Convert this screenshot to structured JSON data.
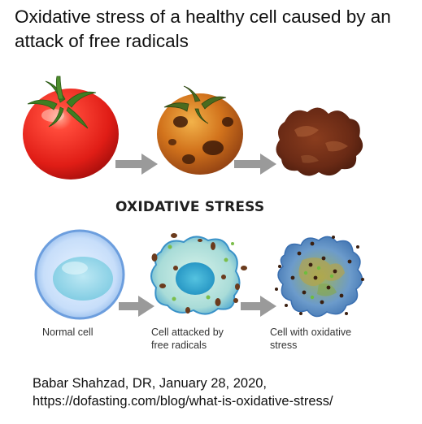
{
  "title": "Oxidative stress of a healthy cell caused by an attack of free radicals",
  "section_heading": "OXIDATIVE STRESS",
  "tomato_stages": [
    {
      "name": "fresh-tomato"
    },
    {
      "name": "spotted-tomato"
    },
    {
      "name": "rotten-tomato"
    }
  ],
  "cell_stages": [
    {
      "label_lines": [
        "Normal cell"
      ]
    },
    {
      "label_lines": [
        "Cell attacked by",
        "free radicals"
      ]
    },
    {
      "label_lines": [
        "Cell with oxidative",
        "stress"
      ]
    }
  ],
  "credit": {
    "line1": "Babar Shahzad, DR, January 28, 2020,",
    "line2": "https://dofasting.com/blog/what-is-oxidative-stress/"
  },
  "colors": {
    "arrow": "#9a9a9a",
    "tomato_red": "#e8231c",
    "cell_blue": "#a9cdf2",
    "radical_dot": "#6b3b1d"
  },
  "icons": [
    "arrow-right-icon"
  ]
}
